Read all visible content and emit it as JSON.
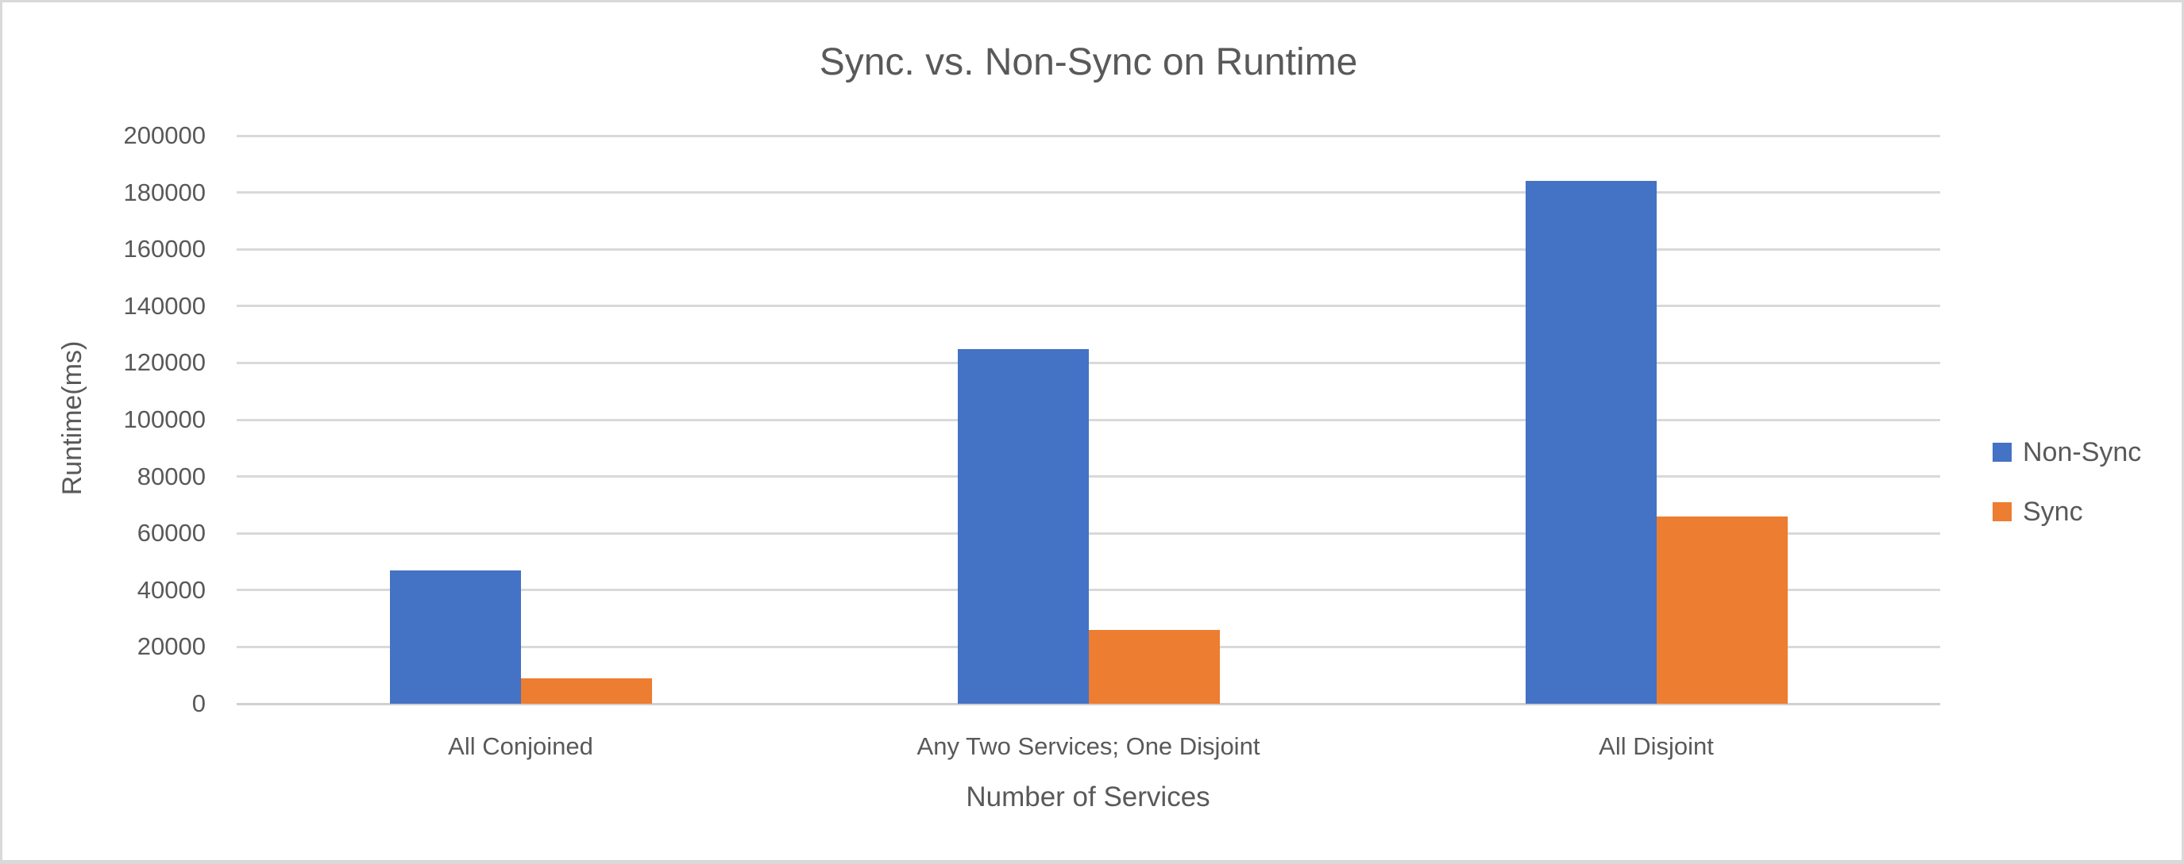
{
  "chart_data": {
    "type": "bar",
    "title": "Sync. vs. Non-Sync on Runtime",
    "xlabel": "Number of Services",
    "ylabel": "Runtime(ms)",
    "categories": [
      "All Conjoined",
      "Any Two Services; One Disjoint",
      "All Disjoint"
    ],
    "series": [
      {
        "name": "Non-Sync",
        "color": "#4472C4",
        "values": [
          47000,
          125000,
          184000
        ]
      },
      {
        "name": "Sync",
        "color": "#ED7D31",
        "values": [
          9000,
          26000,
          66000
        ]
      }
    ],
    "ylim": [
      0,
      200000
    ],
    "ytick_step": 20000,
    "ytick_labels": [
      "0",
      "20000",
      "40000",
      "60000",
      "80000",
      "100000",
      "120000",
      "140000",
      "160000",
      "180000",
      "200000"
    ],
    "grid": true,
    "legend_position": "right",
    "colors": {
      "text": "#595959",
      "gridline": "#D9D9D9",
      "axis_line": "#D0D0D0",
      "background": "#FFFFFF",
      "border": "#D9D9D9"
    }
  }
}
